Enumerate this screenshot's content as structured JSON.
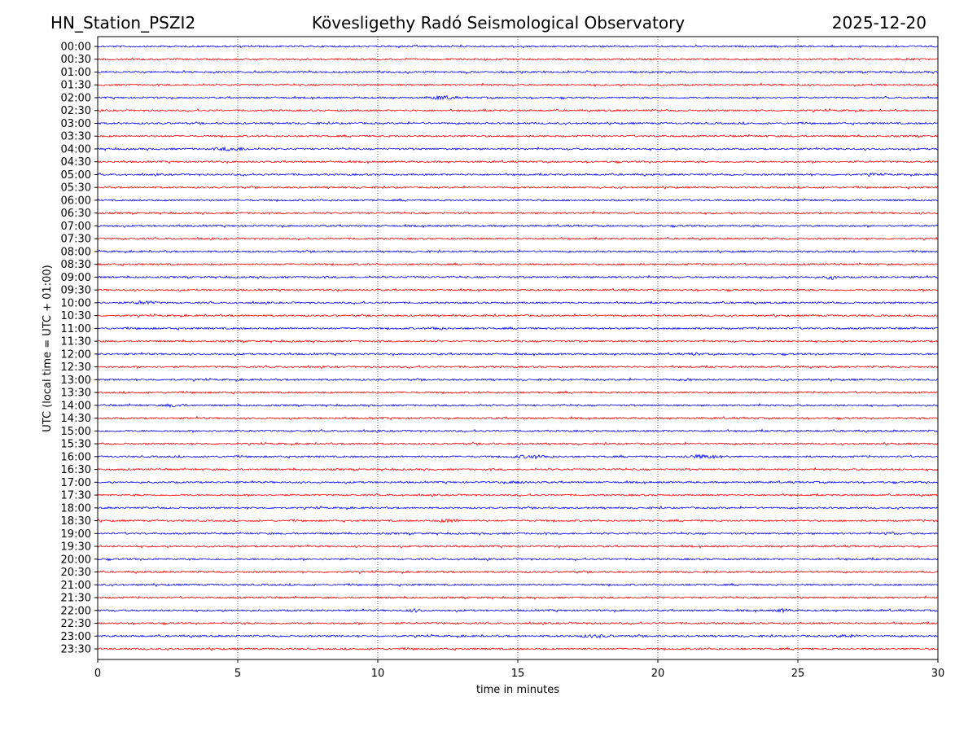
{
  "chart_data": {
    "type": "line",
    "title_left": "HN_Station_PSZI2",
    "title_center": "Kövesligethy Radó Seismological Observatory",
    "title_right": "2025-12-20",
    "xlabel": "time in minutes",
    "ylabel": "UTC (local time = UTC + 01:00)",
    "xlim": [
      0,
      30
    ],
    "xticks": [
      "0",
      "5",
      "10",
      "15",
      "20",
      "25",
      "30"
    ],
    "xtick_values": [
      0,
      5,
      10,
      15,
      20,
      25,
      30
    ],
    "grid": "vertical dotted at x ticks",
    "row_labels": [
      "00:00",
      "00:30",
      "01:00",
      "01:30",
      "02:00",
      "02:30",
      "03:00",
      "03:30",
      "04:00",
      "04:30",
      "05:00",
      "05:30",
      "06:00",
      "06:30",
      "07:00",
      "07:30",
      "08:00",
      "08:30",
      "09:00",
      "09:30",
      "10:00",
      "10:30",
      "11:00",
      "11:30",
      "12:00",
      "12:30",
      "13:00",
      "13:30",
      "14:00",
      "14:30",
      "15:00",
      "15:30",
      "16:00",
      "16:30",
      "17:00",
      "17:30",
      "18:00",
      "18:30",
      "19:00",
      "19:30",
      "20:00",
      "20:30",
      "21:00",
      "21:30",
      "22:00",
      "22:30",
      "23:00",
      "23:30"
    ],
    "series_colors": [
      "#0000ff",
      "#ff0000"
    ],
    "bursts": [
      {
        "row": "02:00",
        "start": 11.7,
        "end": 12.9,
        "amp": 2.2
      },
      {
        "row": "04:00",
        "start": 4.0,
        "end": 5.6,
        "amp": 2.0
      },
      {
        "row": "05:00",
        "start": 27.3,
        "end": 28.0,
        "amp": 1.6
      },
      {
        "row": "09:00",
        "start": 26.0,
        "end": 26.4,
        "amp": 2.6
      },
      {
        "row": "10:00",
        "start": 1.1,
        "end": 2.2,
        "amp": 2.0
      },
      {
        "row": "11:00",
        "start": 11.7,
        "end": 12.5,
        "amp": 1.8
      },
      {
        "row": "12:00",
        "start": 21.1,
        "end": 21.6,
        "amp": 1.8
      },
      {
        "row": "13:00",
        "start": 20.8,
        "end": 21.3,
        "amp": 1.5
      },
      {
        "row": "14:00",
        "start": 2.2,
        "end": 3.3,
        "amp": 1.8
      },
      {
        "row": "16:00",
        "start": 14.5,
        "end": 16.5,
        "amp": 1.9
      },
      {
        "row": "16:00",
        "start": 20.7,
        "end": 22.6,
        "amp": 2.0
      },
      {
        "row": "17:00",
        "start": 14.5,
        "end": 15.5,
        "amp": 1.5
      },
      {
        "row": "18:30",
        "start": 12.0,
        "end": 13.1,
        "amp": 2.0
      },
      {
        "row": "19:00",
        "start": 28.0,
        "end": 28.6,
        "amp": 1.8
      },
      {
        "row": "22:00",
        "start": 10.9,
        "end": 11.8,
        "amp": 1.8
      },
      {
        "row": "22:00",
        "start": 24.0,
        "end": 25.0,
        "amp": 1.8
      },
      {
        "row": "23:00",
        "start": 17.0,
        "end": 18.6,
        "amp": 1.8
      },
      {
        "row": "23:00",
        "start": 26.0,
        "end": 27.6,
        "amp": 1.6
      }
    ]
  }
}
